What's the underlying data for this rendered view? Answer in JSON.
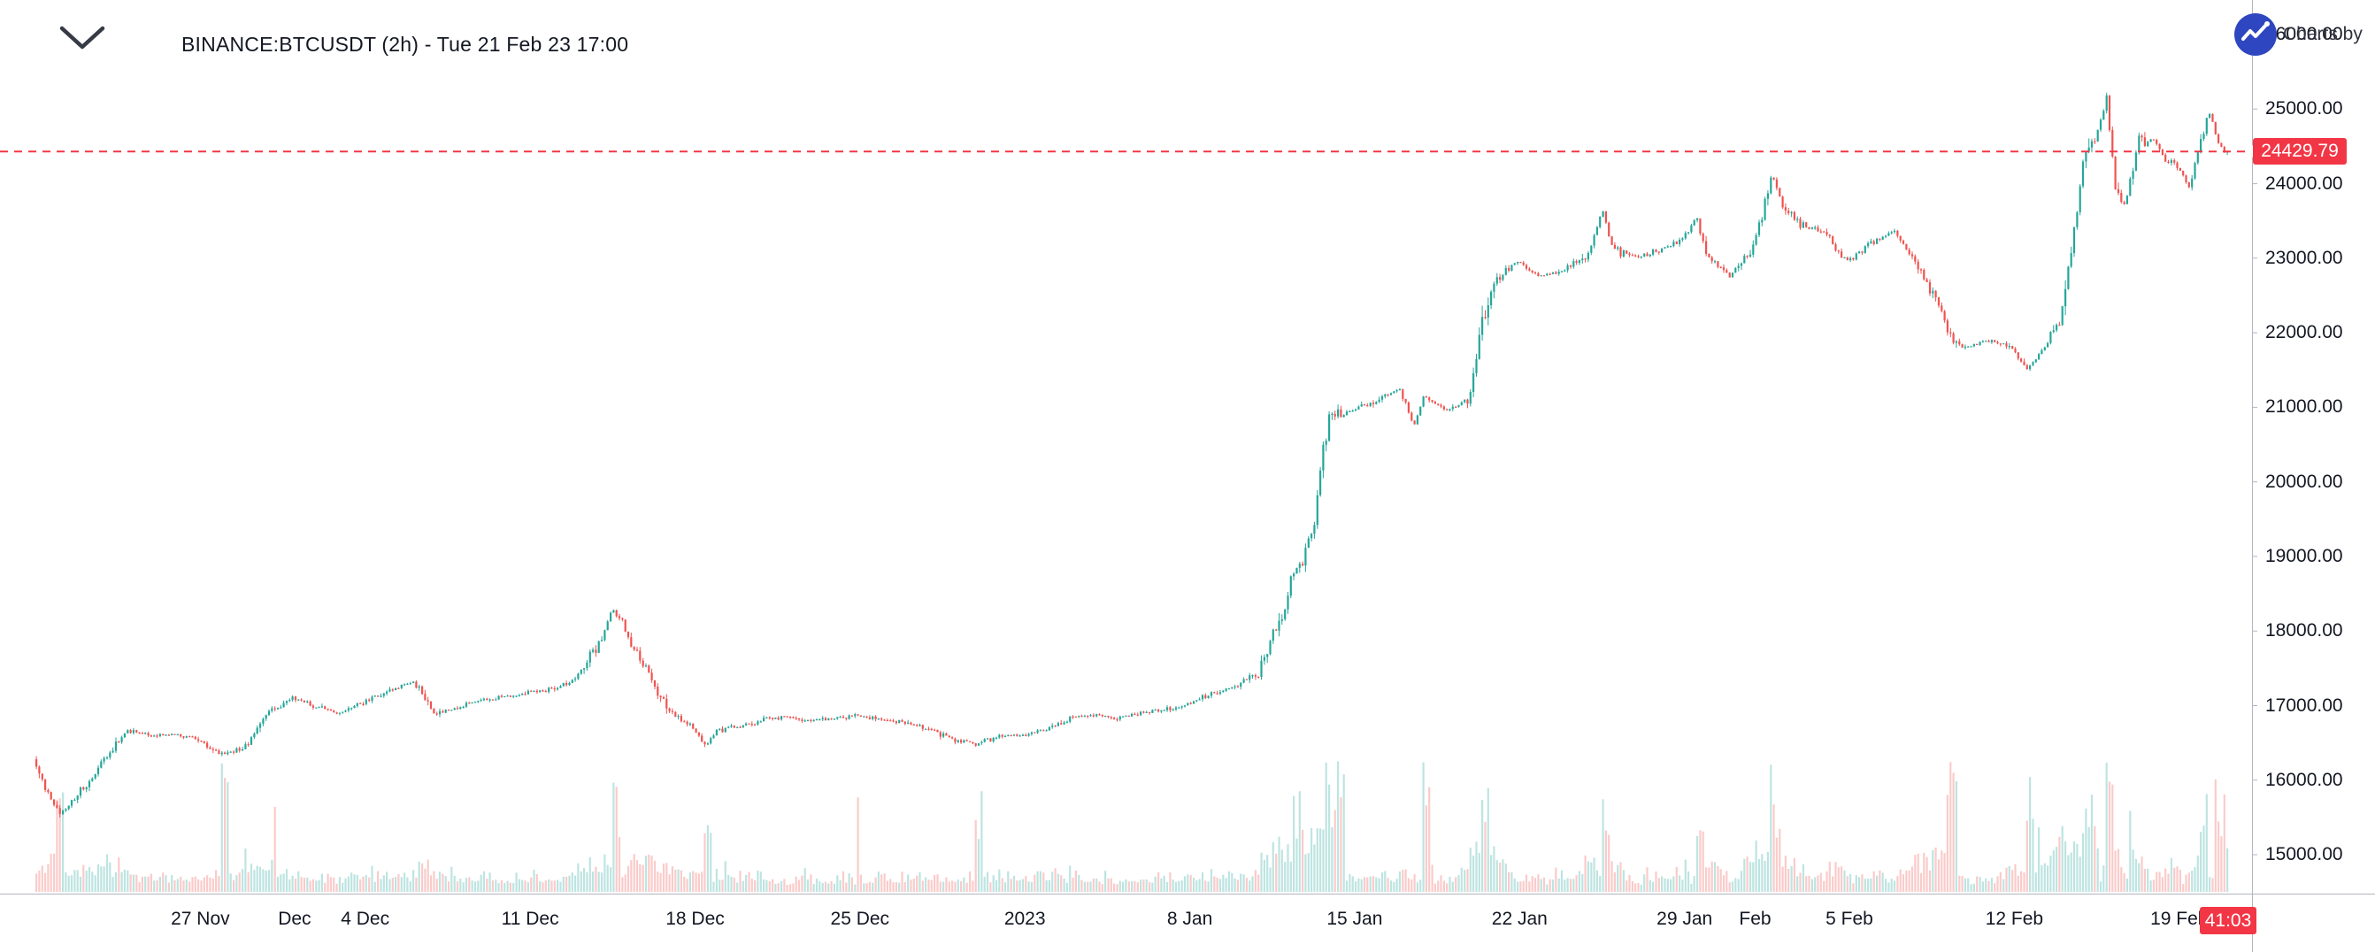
{
  "header": {
    "attribution": "Charts by",
    "chevron_icon": "chevron-down"
  },
  "chart_data": {
    "type": "candlestick",
    "symbol": "BINANCE:BTCUSDT",
    "interval": "2h",
    "title": "BINANCE:BTCUSDT (2h) - Tue 21 Feb 23 17:00",
    "last_price": 24429.79,
    "last_price_label": "24429.79",
    "bar_close_countdown": "41:03",
    "colors": {
      "up": "#26a69a",
      "down": "#ef5350",
      "volume_up": "rgba(38,166,154,0.30)",
      "volume_down": "rgba(239,83,80,0.30)",
      "last_price": "#f23645",
      "axis_text": "#131722",
      "axis_border": "#b2b5be",
      "logo_blue": "#2e46c0",
      "background": "#ffffff"
    },
    "y_axis": {
      "view_min": 14478,
      "view_max": 26463,
      "tick_values": [
        26000,
        25000,
        24000,
        23000,
        22000,
        21000,
        20000,
        19000,
        18000,
        17000,
        16000,
        15000
      ],
      "tick_labels": [
        "26000.00",
        "25000.00",
        "24000.00",
        "23000.00",
        "22000.00",
        "21000.00",
        "20000.00",
        "19000.00",
        "18000.00",
        "17000.00",
        "16000.00",
        "15000.00"
      ]
    },
    "x_axis": {
      "span_days": 93,
      "start_date": "20 Nov",
      "end_date": "21 Feb",
      "ticks": [
        {
          "label": "27 Nov",
          "day": 7
        },
        {
          "label": "Dec",
          "day": 11
        },
        {
          "label": "4 Dec",
          "day": 14
        },
        {
          "label": "11 Dec",
          "day": 21
        },
        {
          "label": "18 Dec",
          "day": 28
        },
        {
          "label": "25 Dec",
          "day": 35
        },
        {
          "label": "2023",
          "day": 42
        },
        {
          "label": "8 Jan",
          "day": 49
        },
        {
          "label": "15 Jan",
          "day": 56
        },
        {
          "label": "22 Jan",
          "day": 63
        },
        {
          "label": "29 Jan",
          "day": 70
        },
        {
          "label": "Feb",
          "day": 73
        },
        {
          "label": "5 Feb",
          "day": 77
        },
        {
          "label": "12 Feb",
          "day": 84
        },
        {
          "label": "19 Feb",
          "day": 91
        }
      ]
    },
    "candles_per_day": 8,
    "price_path_anchors": [
      [
        0,
        16280
      ],
      [
        0.7,
        15750
      ],
      [
        1.2,
        15560
      ],
      [
        2,
        15850
      ],
      [
        3,
        16250
      ],
      [
        4,
        16680
      ],
      [
        5,
        16600
      ],
      [
        6,
        16620
      ],
      [
        7,
        16550
      ],
      [
        8,
        16350
      ],
      [
        9,
        16450
      ],
      [
        10,
        16900
      ],
      [
        11,
        17120
      ],
      [
        12,
        16980
      ],
      [
        13,
        16900
      ],
      [
        14,
        17050
      ],
      [
        15,
        17180
      ],
      [
        16,
        17320
      ],
      [
        16.5,
        17180
      ],
      [
        17,
        16880
      ],
      [
        18,
        16980
      ],
      [
        19,
        17080
      ],
      [
        20,
        17120
      ],
      [
        21,
        17180
      ],
      [
        22,
        17220
      ],
      [
        23,
        17350
      ],
      [
        24,
        17850
      ],
      [
        24.6,
        18280
      ],
      [
        25,
        18120
      ],
      [
        25.5,
        17750
      ],
      [
        26,
        17480
      ],
      [
        26.5,
        17150
      ],
      [
        27,
        16920
      ],
      [
        28,
        16720
      ],
      [
        28.5,
        16450
      ],
      [
        29,
        16680
      ],
      [
        30,
        16720
      ],
      [
        31,
        16820
      ],
      [
        32,
        16850
      ],
      [
        33,
        16800
      ],
      [
        34,
        16830
      ],
      [
        35,
        16870
      ],
      [
        36,
        16820
      ],
      [
        37,
        16780
      ],
      [
        38,
        16680
      ],
      [
        39,
        16550
      ],
      [
        40,
        16480
      ],
      [
        41,
        16580
      ],
      [
        42,
        16600
      ],
      [
        43,
        16680
      ],
      [
        44,
        16820
      ],
      [
        45,
        16880
      ],
      [
        46,
        16830
      ],
      [
        47,
        16900
      ],
      [
        48,
        16950
      ],
      [
        49,
        17020
      ],
      [
        50,
        17150
      ],
      [
        51,
        17250
      ],
      [
        52,
        17420
      ],
      [
        52.6,
        17980
      ],
      [
        53,
        18150
      ],
      [
        53.5,
        18800
      ],
      [
        54,
        19050
      ],
      [
        54.4,
        19550
      ],
      [
        54.8,
        20450
      ],
      [
        55,
        20880
      ],
      [
        56,
        20950
      ],
      [
        57,
        21100
      ],
      [
        58,
        21250
      ],
      [
        58.6,
        20750
      ],
      [
        59,
        21150
      ],
      [
        60,
        20950
      ],
      [
        61,
        21150
      ],
      [
        61.5,
        22150
      ],
      [
        62,
        22650
      ],
      [
        62.5,
        22850
      ],
      [
        63,
        22950
      ],
      [
        64,
        22750
      ],
      [
        65,
        22850
      ],
      [
        66,
        23050
      ],
      [
        66.6,
        23650
      ],
      [
        67,
        23150
      ],
      [
        68,
        23000
      ],
      [
        69,
        23100
      ],
      [
        70,
        23250
      ],
      [
        70.6,
        23550
      ],
      [
        71,
        23050
      ],
      [
        72,
        22750
      ],
      [
        73,
        23150
      ],
      [
        73.8,
        24150
      ],
      [
        74.3,
        23650
      ],
      [
        75,
        23450
      ],
      [
        76,
        23350
      ],
      [
        77,
        22950
      ],
      [
        78,
        23200
      ],
      [
        79,
        23350
      ],
      [
        80,
        22900
      ],
      [
        81,
        22250
      ],
      [
        81.5,
        21850
      ],
      [
        82,
        21800
      ],
      [
        83,
        21900
      ],
      [
        84,
        21800
      ],
      [
        84.6,
        21500
      ],
      [
        85,
        21650
      ],
      [
        86,
        22150
      ],
      [
        86.7,
        23500
      ],
      [
        87,
        24250
      ],
      [
        87.6,
        24650
      ],
      [
        88,
        25150
      ],
      [
        88.4,
        23850
      ],
      [
        88.8,
        23700
      ],
      [
        89.3,
        24550
      ],
      [
        90,
        24600
      ],
      [
        90.5,
        24300
      ],
      [
        91,
        24250
      ],
      [
        91.5,
        23950
      ],
      [
        92,
        24600
      ],
      [
        92.4,
        24950
      ],
      [
        92.7,
        24550
      ],
      [
        93,
        24429.79
      ]
    ],
    "volume_spike_days": [
      1,
      8,
      24.6,
      28.5,
      40,
      53.5,
      54.8,
      55.3,
      59,
      61.5,
      66.6,
      70.6,
      73.8,
      81.3,
      84.6,
      87,
      88,
      92,
      92.7
    ]
  }
}
